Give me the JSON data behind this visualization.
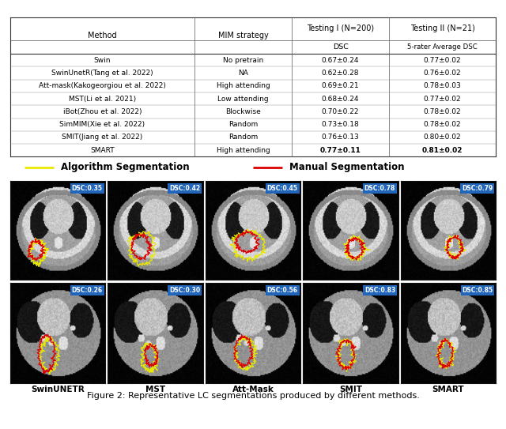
{
  "table_data": [
    [
      "Swin",
      "No pretrain",
      "0.67±0.24",
      "0.77±0.02"
    ],
    [
      "SwinUnetR(Tang et al. 2022)",
      "NA",
      "0.62±0.28",
      "0.76±0.02"
    ],
    [
      "Att-mask(Kakogeorgiou et al. 2022)",
      "High attending",
      "0.69±0.21",
      "0.78±0.03"
    ],
    [
      "MST(Li et al. 2021)",
      "Low attending",
      "0.68±0.24",
      "0.77±0.02"
    ],
    [
      "iBot(Zhou et al. 2022)",
      "Blockwise",
      "0.70±0.22",
      "0.78±0.02"
    ],
    [
      "SimMIM(Xie et al. 2022)",
      "Random",
      "0.73±0.18",
      "0.78±0.02"
    ],
    [
      "SMIT(Jiang et al. 2022)",
      "Random",
      "0.76±0.13",
      "0.80±0.02"
    ],
    [
      "SMART",
      "High attending",
      "0.77±0.11",
      "0.81±0.02"
    ]
  ],
  "legend_algo": "Algorithm Segmentation",
  "legend_manual": "Manual Segmentation",
  "legend_algo_color": "#e8e800",
  "legend_manual_color": "#dd0000",
  "row1_dsc": [
    "DSC:0.35",
    "DSC:0.42",
    "DSC:0.45",
    "DSC:0.78",
    "DSC:0.79"
  ],
  "row2_dsc": [
    "DSC:0.26",
    "DSC:0.30",
    "DSC:0.56",
    "DSC:0.83",
    "DSC:0.85"
  ],
  "col_labels": [
    "SwinUNETR",
    "MST",
    "Att-Mask",
    "SMIT",
    "SMART"
  ],
  "caption": "Figure 2: Representative LC segmentations produced by different methods.",
  "bg_color": "#ffffff",
  "dsc_box_color": "#2266bb",
  "dsc_text_color": "#ffffff"
}
